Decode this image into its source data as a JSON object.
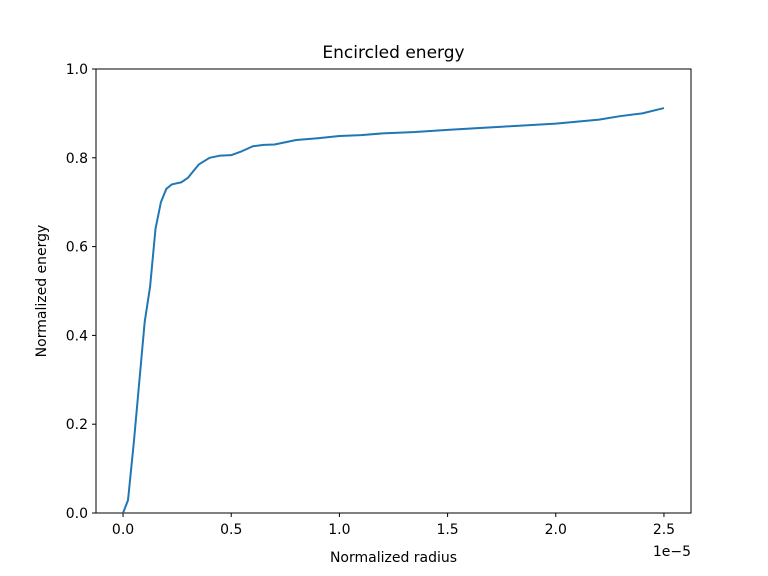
{
  "chart_data": {
    "type": "line",
    "title": "Encircled energy",
    "xlabel": "Normalized radius",
    "ylabel": "Normalized energy",
    "x_offset_label": "1e−5",
    "x": [
      0,
      0.023,
      0.05,
      0.1,
      0.125,
      0.15,
      0.175,
      0.2,
      0.225,
      0.27,
      0.3,
      0.35,
      0.4,
      0.45,
      0.5,
      0.55,
      0.6,
      0.65,
      0.7,
      0.8,
      0.9,
      1.0,
      1.1,
      1.2,
      1.35,
      1.5,
      1.75,
      2.0,
      2.2,
      2.3,
      2.4,
      2.5
    ],
    "series": [
      {
        "color": "#1f77b4",
        "values": [
          0,
          0.029,
          0.16,
          0.43,
          0.51,
          0.64,
          0.7,
          0.73,
          0.74,
          0.745,
          0.755,
          0.785,
          0.8,
          0.805,
          0.806,
          0.815,
          0.826,
          0.829,
          0.83,
          0.84,
          0.844,
          0.849,
          0.851,
          0.855,
          0.858,
          0.863,
          0.87,
          0.877,
          0.886,
          0.894,
          0.9,
          0.912
        ]
      }
    ],
    "xlim": [
      -0.125,
      2.625
    ],
    "ylim": [
      0,
      1
    ],
    "xticks": [
      {
        "value": 0,
        "label": "0.0"
      },
      {
        "value": 0.5,
        "label": "0.5"
      },
      {
        "value": 1,
        "label": "1.0"
      },
      {
        "value": 1.5,
        "label": "1.5"
      },
      {
        "value": 2,
        "label": "2.0"
      },
      {
        "value": 2.5,
        "label": "2.5"
      }
    ],
    "yticks": [
      {
        "value": 0,
        "label": "0.0"
      },
      {
        "value": 0.2,
        "label": "0.2"
      },
      {
        "value": 0.4,
        "label": "0.4"
      },
      {
        "value": 0.6,
        "label": "0.6"
      },
      {
        "value": 0.8,
        "label": "0.8"
      },
      {
        "value": 1,
        "label": "1.0"
      }
    ],
    "grid": false
  }
}
